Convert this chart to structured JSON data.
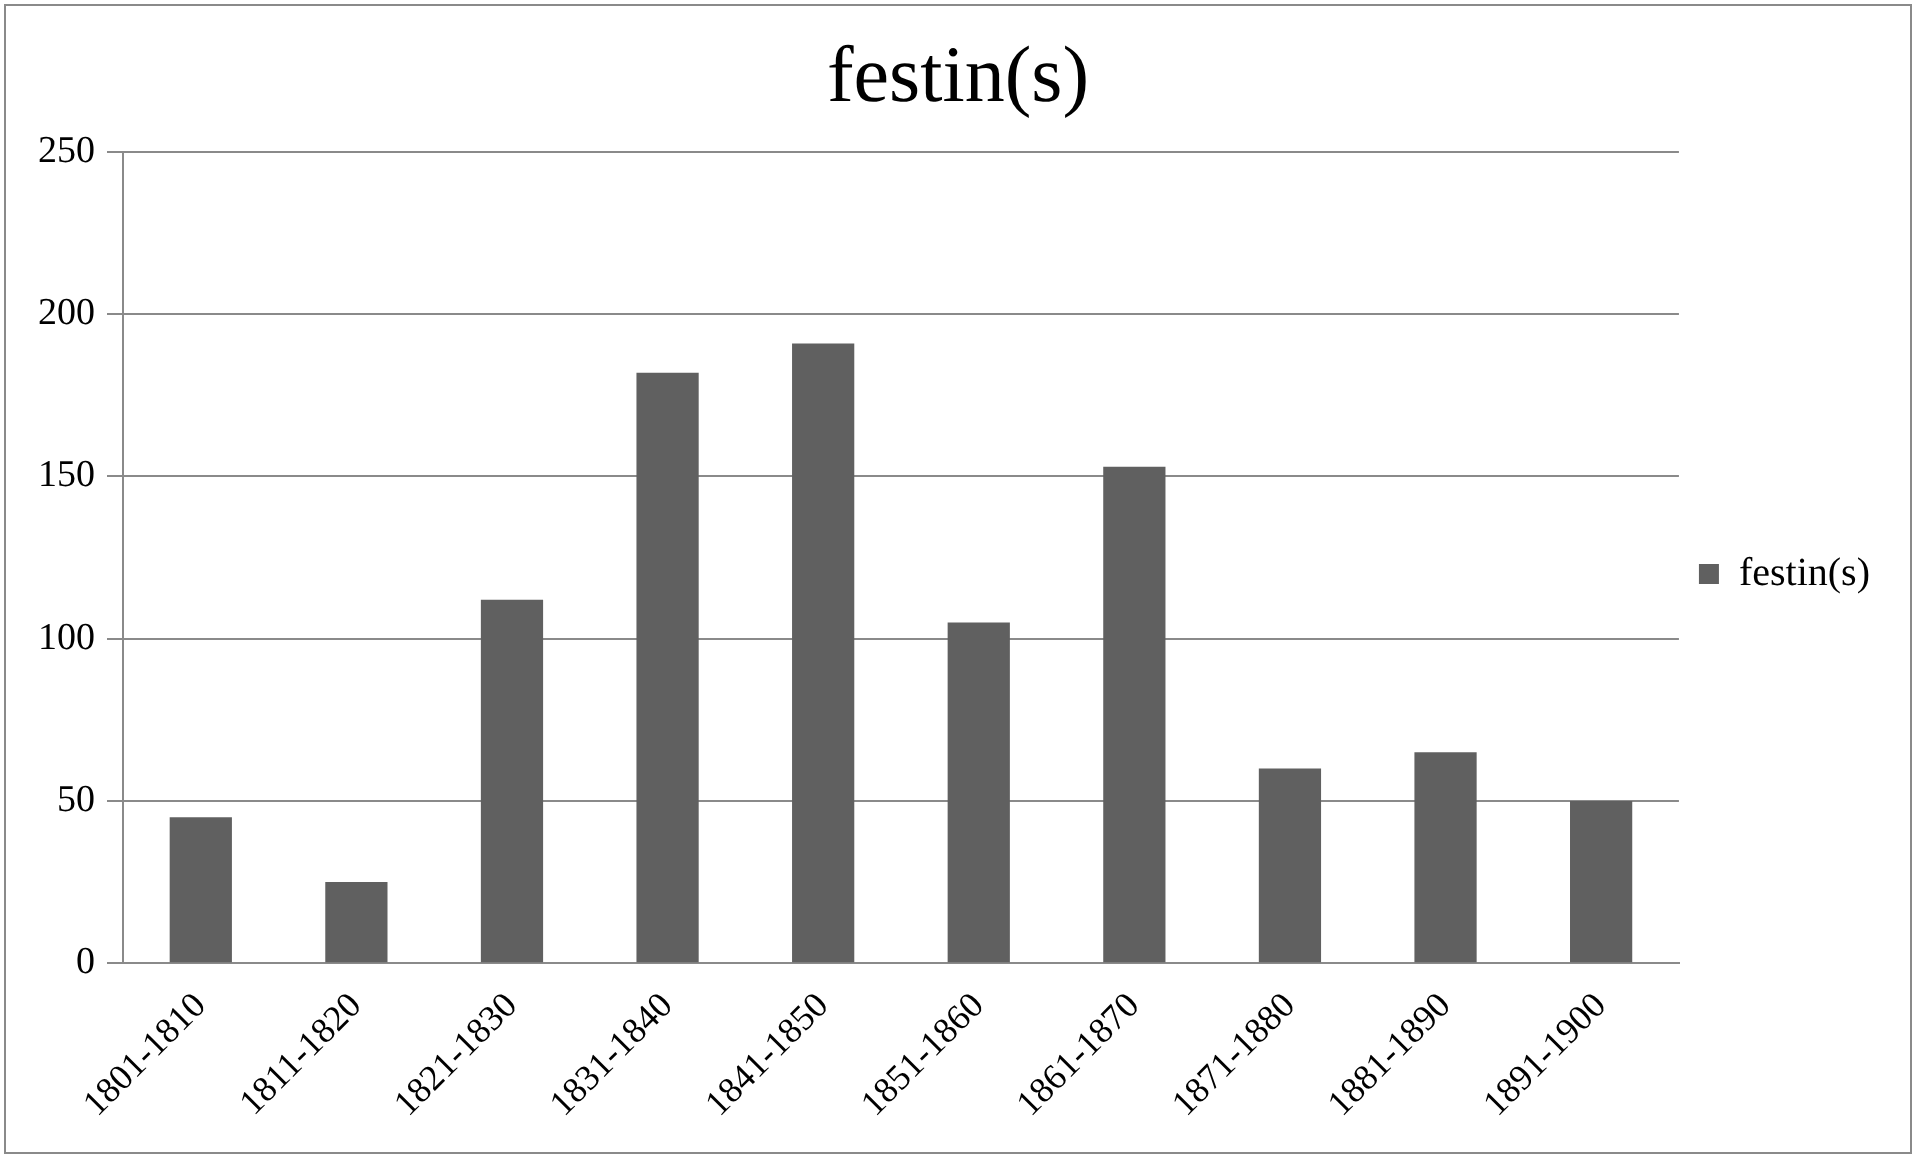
{
  "chart_data": {
    "type": "bar",
    "title": "festin(s)",
    "categories": [
      "1801-1810",
      "1811-1820",
      "1821-1830",
      "1831-1840",
      "1841-1850",
      "1851-1860",
      "1861-1870",
      "1871-1880",
      "1881-1890",
      "1891-1900"
    ],
    "series": [
      {
        "name": "festin(s)",
        "color": "#606060",
        "values": [
          45,
          25,
          112,
          182,
          191,
          105,
          153,
          60,
          65,
          50
        ]
      }
    ],
    "ylim": [
      0,
      250
    ],
    "yticks": [
      0,
      50,
      100,
      150,
      200,
      250
    ],
    "grid": "y",
    "legend": "right"
  }
}
